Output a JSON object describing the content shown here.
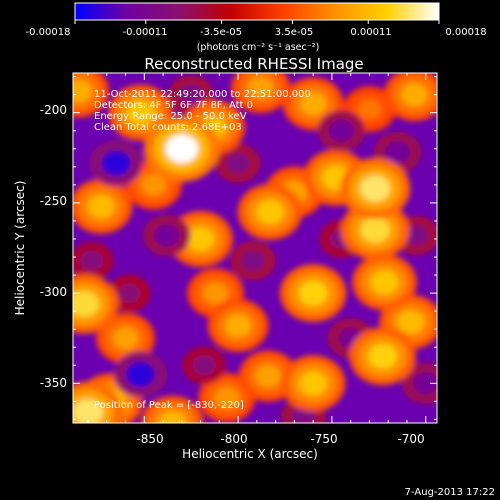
{
  "colorbar": {
    "tick_labels": [
      "-0.00018",
      "-0.00011",
      "-3.5e-05",
      "3.5e-05",
      "0.00011",
      "0.00018"
    ],
    "tick_values": [
      -0.00018,
      -0.00011,
      -3.5e-05,
      3.5e-05,
      0.00011,
      0.00018
    ],
    "range": [
      -0.00018,
      0.00018
    ],
    "units_label": "(photons cm⁻² s⁻¹ asec⁻²)",
    "colors": [
      "#0000ff",
      "#7000a0",
      "#8a1070",
      "#c00000",
      "#ff4000",
      "#ff9000",
      "#ffd000",
      "#ffffff"
    ]
  },
  "annotations": {
    "time_range": "11-Oct-2011 22:49:20.000 to 22:51:00.000",
    "detectors": "Detectors: 4F 5F 6F 7F 8F, Att 0",
    "energy_range": "Energy Range: 25.0 - 50.0 keV",
    "clean_counts": "Clean     Total counts: 2.68E+03",
    "peak_position": "Position of Peak = [-830,-220]"
  },
  "footer": {
    "date_stamp": "7-Aug-2013 17:22"
  },
  "chart_data": {
    "type": "heatmap",
    "title": "Reconstructed RHESSI Image",
    "xlabel": "Heliocentric X (arcsec)",
    "ylabel": "Heliocentric Y (arcsec)",
    "xlim": [
      -888,
      -694
    ],
    "ylim": [
      -372,
      -178
    ],
    "x_ticks": [
      -850,
      -800,
      -750,
      -700
    ],
    "x_tick_labels": [
      "-850",
      "-800",
      "-750",
      "-700"
    ],
    "y_ticks": [
      -350,
      -300,
      -250,
      -200
    ],
    "y_tick_labels": [
      "-350",
      "-300",
      "-250",
      "-200"
    ],
    "peak": {
      "x": -830,
      "y": -220
    },
    "blobs": [
      {
        "x": -830,
        "y": -220,
        "value": 0.00018
      },
      {
        "x": -852,
        "y": -200,
        "value": 0.00012
      },
      {
        "x": -813,
        "y": -208,
        "value": 0.00011
      },
      {
        "x": -788,
        "y": -186,
        "value": 9e-05
      },
      {
        "x": -760,
        "y": -195,
        "value": 0.0001
      },
      {
        "x": -730,
        "y": -198,
        "value": 6e-05
      },
      {
        "x": -706,
        "y": -190,
        "value": 0.0001
      },
      {
        "x": -820,
        "y": -270,
        "value": 0.00012
      },
      {
        "x": -812,
        "y": -300,
        "value": 8e-05
      },
      {
        "x": -783,
        "y": -255,
        "value": 0.00012
      },
      {
        "x": -770,
        "y": -244,
        "value": 9e-05
      },
      {
        "x": -748,
        "y": -236,
        "value": 0.00012
      },
      {
        "x": -727,
        "y": -242,
        "value": 0.00015
      },
      {
        "x": -727,
        "y": -265,
        "value": 0.00014
      },
      {
        "x": -722,
        "y": -294,
        "value": 0.00012
      },
      {
        "x": -760,
        "y": -300,
        "value": 0.00013
      },
      {
        "x": -800,
        "y": -318,
        "value": 0.0001
      },
      {
        "x": -784,
        "y": -346,
        "value": 9e-05
      },
      {
        "x": -760,
        "y": -350,
        "value": 0.00012
      },
      {
        "x": -723,
        "y": -335,
        "value": 0.00013
      },
      {
        "x": -708,
        "y": -316,
        "value": 0.00011
      },
      {
        "x": -873,
        "y": -252,
        "value": 0.00011
      },
      {
        "x": -882,
        "y": -306,
        "value": 0.00014
      },
      {
        "x": -860,
        "y": -325,
        "value": 9e-05
      },
      {
        "x": -868,
        "y": -360,
        "value": 0.00012
      },
      {
        "x": -880,
        "y": -366,
        "value": 0.00015
      },
      {
        "x": -835,
        "y": -372,
        "value": 0.00011
      },
      {
        "x": -806,
        "y": -358,
        "value": 8e-05
      },
      {
        "x": -845,
        "y": -240,
        "value": 8e-05
      },
      {
        "x": -885,
        "y": -188,
        "value": 0.0001
      },
      {
        "x": -865,
        "y": -228,
        "value": -0.00016
      },
      {
        "x": -838,
        "y": -268,
        "value": -0.00012
      },
      {
        "x": -878,
        "y": -282,
        "value": -9e-05
      },
      {
        "x": -852,
        "y": -345,
        "value": -0.00016
      },
      {
        "x": -818,
        "y": -340,
        "value": -9e-05
      },
      {
        "x": -800,
        "y": -228,
        "value": -0.0001
      },
      {
        "x": -792,
        "y": -282,
        "value": -0.0001
      },
      {
        "x": -745,
        "y": -210,
        "value": -0.00012
      },
      {
        "x": -715,
        "y": -222,
        "value": -0.00012
      },
      {
        "x": -745,
        "y": -270,
        "value": -9e-05
      },
      {
        "x": -705,
        "y": -268,
        "value": -0.0001
      },
      {
        "x": -740,
        "y": -325,
        "value": -0.00011
      },
      {
        "x": -700,
        "y": -350,
        "value": -0.00012
      },
      {
        "x": -765,
        "y": -368,
        "value": -0.0001
      },
      {
        "x": -825,
        "y": -190,
        "value": -0.0001
      },
      {
        "x": -858,
        "y": -300,
        "value": -8e-05
      }
    ]
  }
}
